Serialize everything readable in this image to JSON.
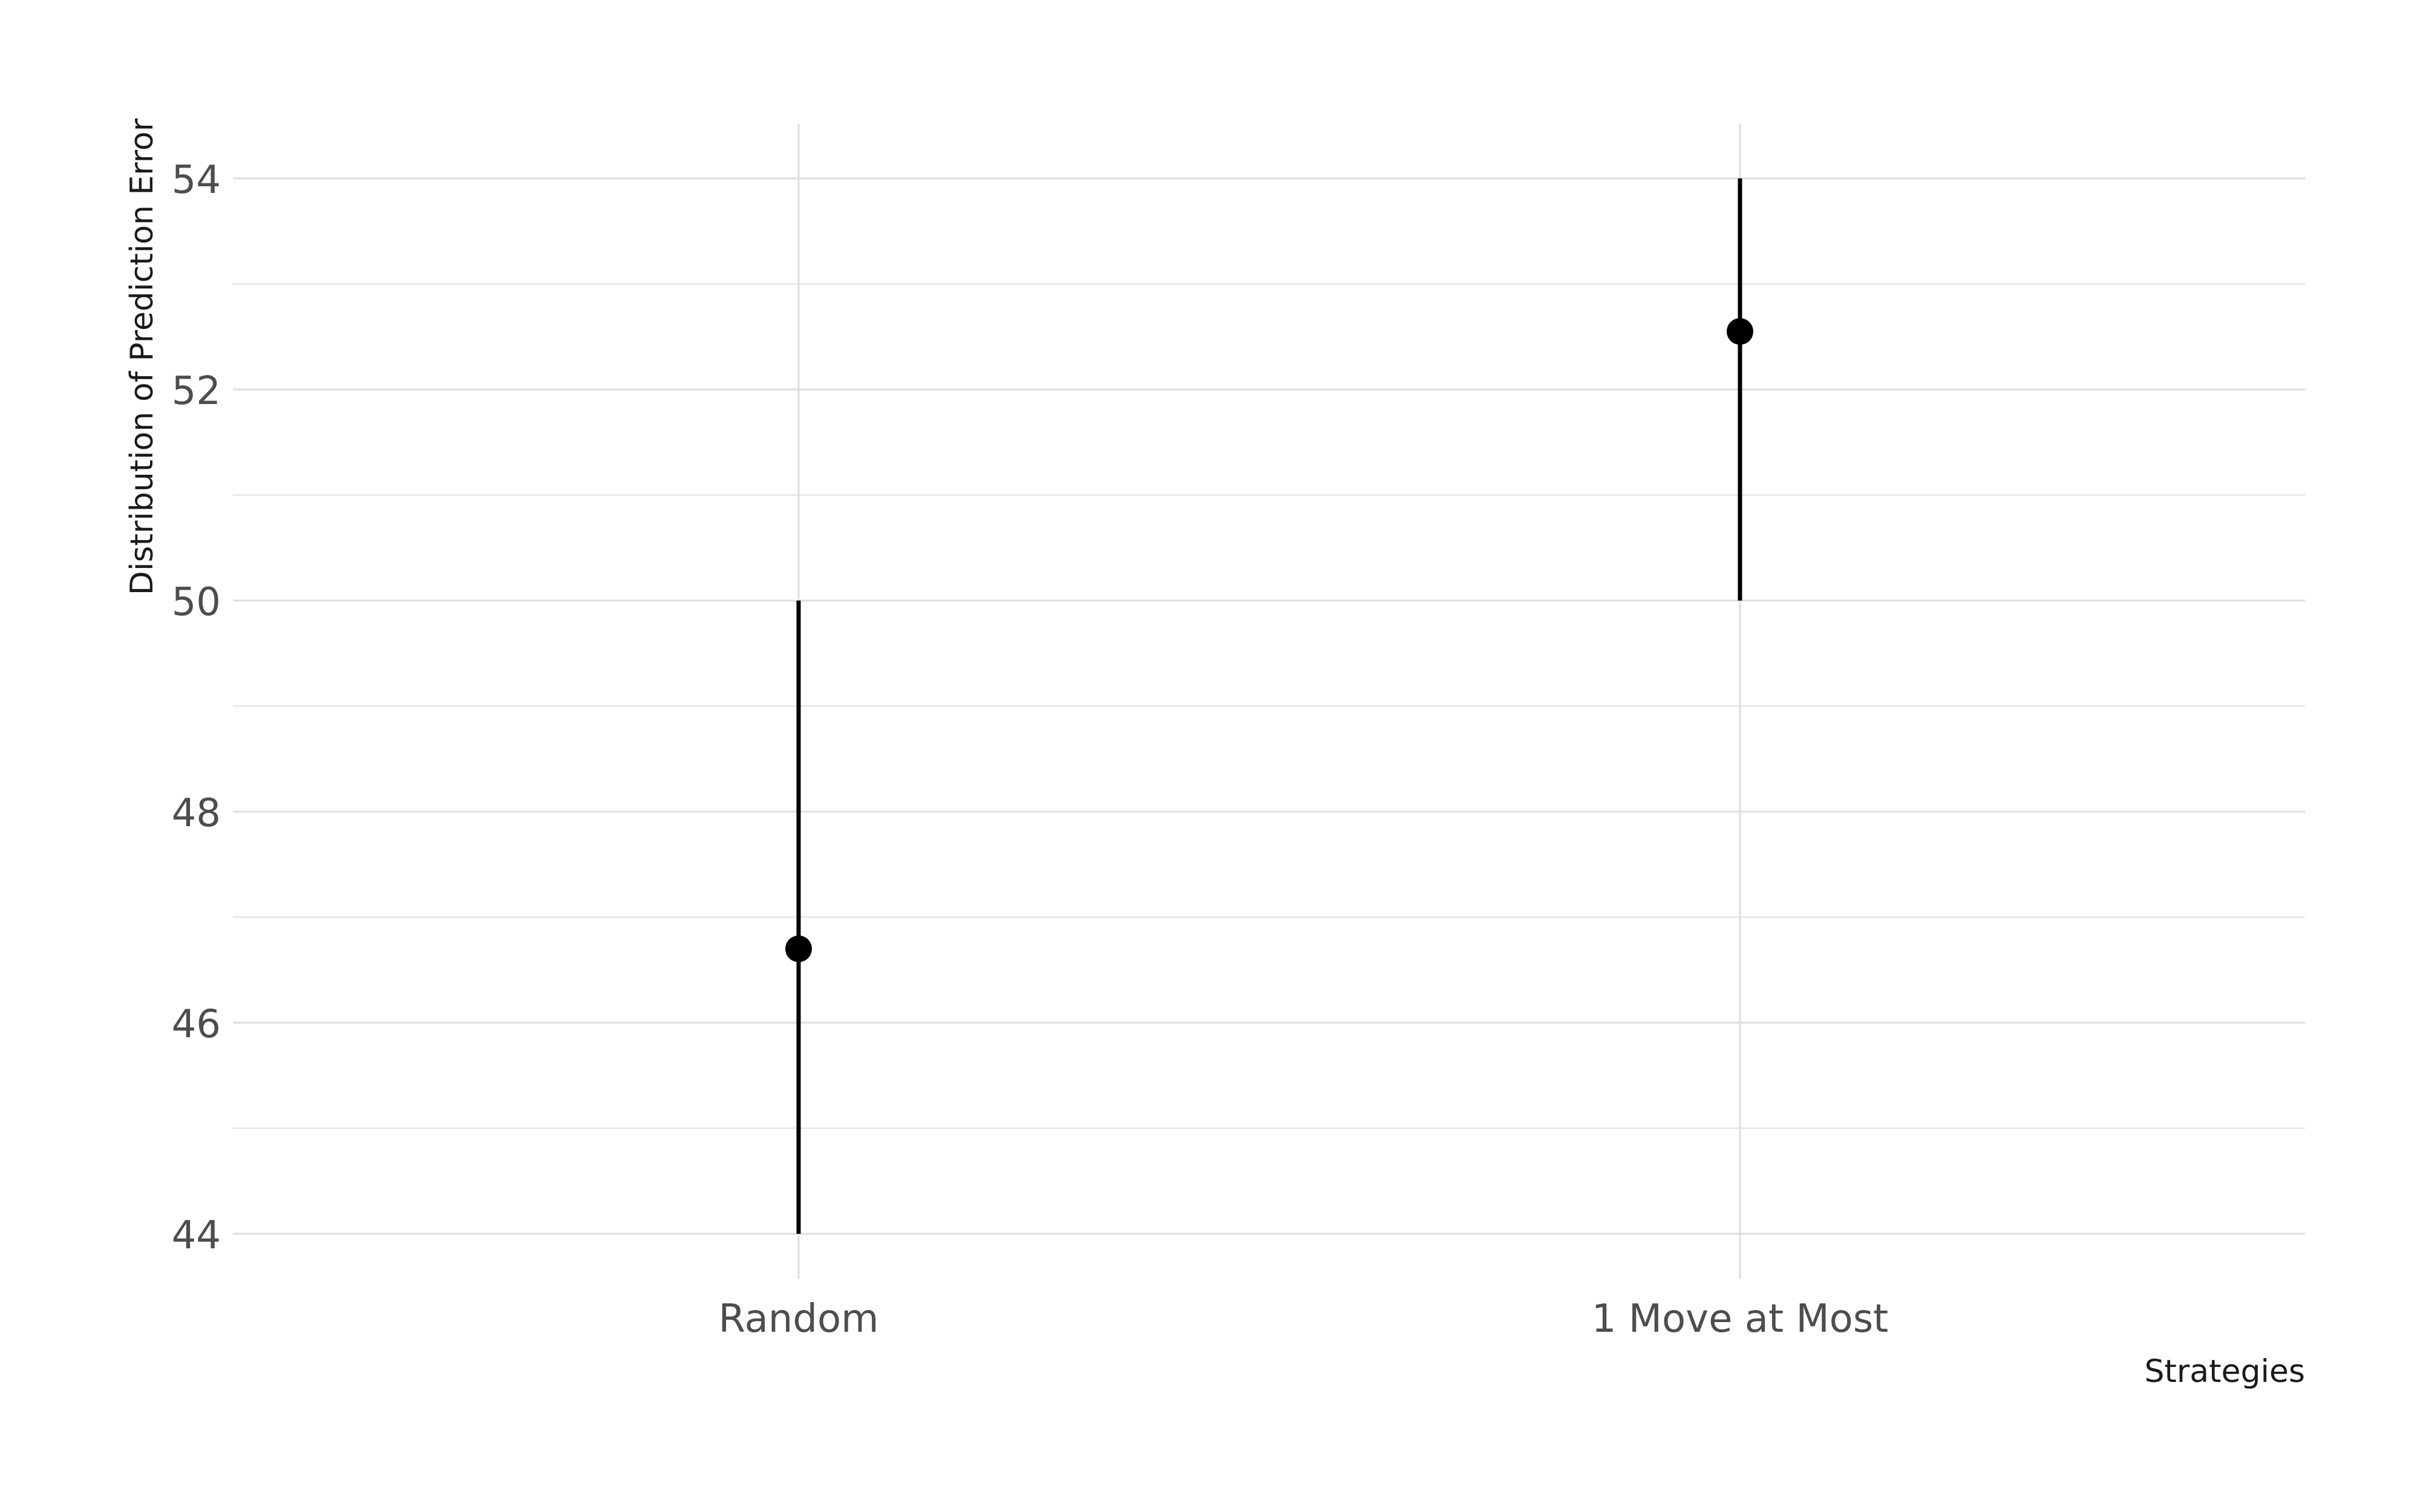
{
  "chart_data": {
    "type": "pointrange",
    "categories": [
      "Random",
      "1 Move at Most"
    ],
    "series": [
      {
        "points": [
          {
            "category": "Random",
            "y": 46.7,
            "ymin": 44,
            "ymax": 50
          },
          {
            "category": "1 Move at Most",
            "y": 52.55,
            "ymin": 50,
            "ymax": 54
          }
        ]
      }
    ],
    "xlabel": "Strategies",
    "ylabel": "Distribution of Prediction Error",
    "ylim": [
      43.5,
      54.5
    ],
    "yticks": [
      44,
      46,
      48,
      50,
      52,
      54
    ],
    "grid": true,
    "legend": "none",
    "colors": {
      "mark": "#000000",
      "grid": "#dedede",
      "tick_text": "#4d4d4d",
      "title_text": "#1a1a1a",
      "background": "#ffffff"
    }
  }
}
